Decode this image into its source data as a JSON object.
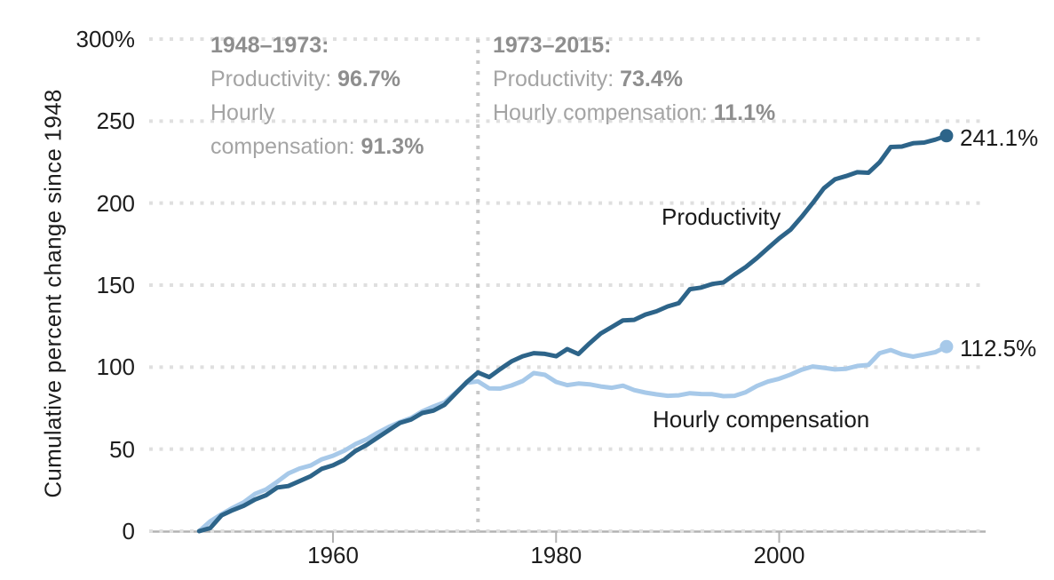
{
  "chart_data": {
    "type": "line",
    "title": "",
    "ylabel": "Cumulative percent change since 1948",
    "xlabel": "",
    "xlim": [
      1948,
      2015
    ],
    "ylim": [
      0,
      300
    ],
    "grid": "horizontal dotted",
    "reference_line_x": 1973,
    "y_ticks": [
      {
        "label": "300%",
        "value": 300
      },
      {
        "label": "250",
        "value": 250
      },
      {
        "label": "200",
        "value": 200
      },
      {
        "label": "150",
        "value": 150
      },
      {
        "label": "100",
        "value": 100
      },
      {
        "label": "50",
        "value": 50
      },
      {
        "label": "0",
        "value": 0
      }
    ],
    "x_ticks": [
      {
        "label": "1960",
        "value": 1960
      },
      {
        "label": "1980",
        "value": 1980
      },
      {
        "label": "2000",
        "value": 2000
      }
    ],
    "years": [
      1948,
      1949,
      1950,
      1951,
      1952,
      1953,
      1954,
      1955,
      1956,
      1957,
      1958,
      1959,
      1960,
      1961,
      1962,
      1963,
      1964,
      1965,
      1966,
      1967,
      1968,
      1969,
      1970,
      1971,
      1972,
      1973,
      1974,
      1975,
      1976,
      1977,
      1978,
      1979,
      1980,
      1981,
      1982,
      1983,
      1984,
      1985,
      1986,
      1987,
      1988,
      1989,
      1990,
      1991,
      1992,
      1993,
      1994,
      1995,
      1996,
      1997,
      1998,
      1999,
      2000,
      2001,
      2002,
      2003,
      2004,
      2005,
      2006,
      2007,
      2008,
      2009,
      2010,
      2011,
      2012,
      2013,
      2014,
      2015
    ],
    "series": [
      {
        "name": "Productivity",
        "color": "#2d6489",
        "end_label": "241.1%",
        "values": [
          0.0,
          1.9,
          9.6,
          12.8,
          15.5,
          19.3,
          21.9,
          26.6,
          27.5,
          30.5,
          33.5,
          38.0,
          40.1,
          43.5,
          48.8,
          52.5,
          57.0,
          61.5,
          66.0,
          68.0,
          72.0,
          73.5,
          77.0,
          84.0,
          91.0,
          96.7,
          93.9,
          98.8,
          103.5,
          106.6,
          108.5,
          108.1,
          106.6,
          111.0,
          108.0,
          114.5,
          120.5,
          124.5,
          128.5,
          128.8,
          132.0,
          134.0,
          137.0,
          139.0,
          147.5,
          148.5,
          150.7,
          151.6,
          156.5,
          161.0,
          166.5,
          172.5,
          178.5,
          183.7,
          191.5,
          200.0,
          209.0,
          214.5,
          216.5,
          218.8,
          218.5,
          224.9,
          234.2,
          234.5,
          236.5,
          236.9,
          238.7,
          241.1
        ]
      },
      {
        "name": "Hourly compensation",
        "color": "#a7c9e9",
        "end_label": "112.5%",
        "values": [
          0.0,
          6.0,
          10.3,
          14.2,
          17.6,
          22.7,
          25.4,
          30.1,
          35.2,
          38.2,
          40.0,
          43.8,
          46.0,
          49.0,
          53.0,
          56.0,
          60.0,
          63.5,
          66.5,
          69.0,
          73.0,
          76.0,
          78.5,
          84.5,
          90.5,
          91.3,
          87.1,
          86.9,
          88.8,
          91.5,
          96.4,
          95.3,
          91.0,
          89.0,
          90.0,
          89.5,
          88.2,
          87.4,
          88.7,
          86.0,
          84.5,
          83.4,
          82.5,
          82.8,
          84.1,
          83.6,
          83.5,
          82.3,
          82.5,
          84.7,
          88.5,
          91.2,
          92.9,
          95.4,
          98.4,
          100.4,
          99.6,
          98.6,
          99.0,
          100.7,
          101.3,
          108.5,
          110.4,
          107.8,
          106.4,
          107.7,
          109.1,
          112.5
        ]
      }
    ],
    "annotations": [
      {
        "id": "period-1948-1973",
        "title": "1948–1973:",
        "lines": [
          [
            {
              "text": "Productivity: "
            },
            {
              "text": "96.7%",
              "bold": true
            }
          ],
          [
            {
              "text": "Hourly"
            }
          ],
          [
            {
              "text": "compensation: "
            },
            {
              "text": "91.3%",
              "bold": true
            }
          ]
        ]
      },
      {
        "id": "period-1973-2015",
        "title": "1973–2015:",
        "lines": [
          [
            {
              "text": "Productivity: "
            },
            {
              "text": "73.4%",
              "bold": true
            }
          ],
          [
            {
              "text": "Hourly compensation: "
            },
            {
              "text": "11.1%",
              "bold": true
            }
          ]
        ]
      }
    ],
    "colors": {
      "productivity_line": "#2d6489",
      "compensation_line": "#a7c9e9",
      "gridline": "#dfdfdf",
      "reference_line": "#c8c8c8",
      "axis_line": "#b3b3b3",
      "annotation_text": "#a4a4a4",
      "annotation_bold": "#8e8e8e",
      "label_text": "#1a1a1a"
    }
  }
}
